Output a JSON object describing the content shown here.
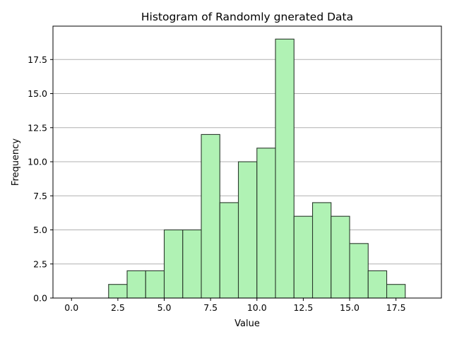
{
  "chart_data": {
    "type": "bar",
    "title": "Histogram of Randomly gnerated Data",
    "xlabel": "Value",
    "ylabel": "Frequency",
    "xlim": [
      -1.0,
      19.95
    ],
    "ylim": [
      0,
      19.95
    ],
    "bin_edges": [
      0,
      1,
      2,
      3,
      4,
      5,
      6,
      7,
      8,
      9,
      10,
      11,
      12,
      13,
      14,
      15,
      16,
      17,
      18,
      19
    ],
    "values": [
      0,
      0,
      1,
      2,
      2,
      5,
      5,
      12,
      7,
      10,
      11,
      19,
      6,
      7,
      6,
      4,
      2,
      1,
      0
    ],
    "x_ticks": [
      0,
      2.5,
      5,
      7.5,
      10,
      12.5,
      15,
      17.5
    ],
    "x_tick_labels": [
      "0.0",
      "2.5",
      "5.0",
      "7.5",
      "10.0",
      "12.5",
      "15.0",
      "17.5"
    ],
    "y_ticks": [
      0,
      2.5,
      5,
      7.5,
      10,
      12.5,
      15,
      17.5
    ],
    "y_tick_labels": [
      "0.0",
      "2.5",
      "5.0",
      "7.5",
      "10.0",
      "12.5",
      "15.0",
      "17.5"
    ],
    "grid": "horizontal",
    "colors": {
      "bar_fill": "#b0f2b4",
      "bar_edge": "#2a3a2c",
      "grid": "#b0b0b0",
      "axes": "#000000"
    }
  }
}
